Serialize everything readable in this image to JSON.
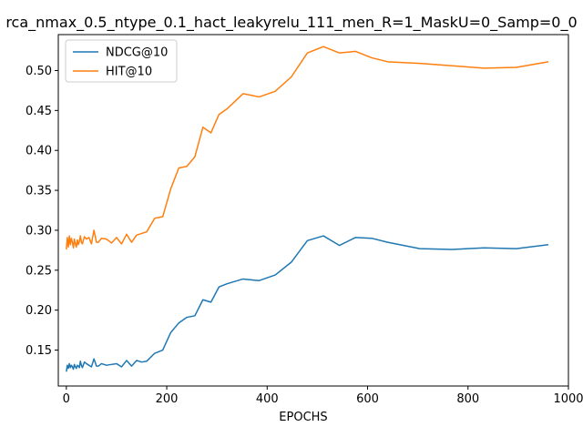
{
  "chart_data": {
    "type": "line",
    "title": "rca_nmax_0.5_ntype_0.1_hact_leakyrelu_111_men_R=1_MaskU=0_Samp=0_0",
    "xlabel": "EPOCHS",
    "ylabel": "",
    "xlim": [
      -16,
      1000
    ],
    "ylim": [
      0.105,
      0.545
    ],
    "xticks": [
      0,
      200,
      400,
      600,
      800,
      1000
    ],
    "yticks": [
      0.15,
      0.2,
      0.25,
      0.3,
      0.35,
      0.4,
      0.45,
      0.5
    ],
    "ytick_labels": [
      "0.15",
      "0.20",
      "0.25",
      "0.30",
      "0.35",
      "0.40",
      "0.45",
      "0.50"
    ],
    "grid": false,
    "legend_position": "top-left",
    "series": [
      {
        "name": "NDCG@10",
        "color": "#1f77b4",
        "x": [
          0,
          2,
          4,
          6,
          8,
          10,
          12,
          14,
          16,
          18,
          20,
          22,
          24,
          26,
          28,
          30,
          32,
          36,
          40,
          45,
          50,
          55,
          60,
          64,
          70,
          80,
          90,
          100,
          110,
          120,
          130,
          140,
          150,
          160,
          176,
          192,
          208,
          224,
          240,
          256,
          272,
          288,
          304,
          320,
          352,
          384,
          416,
          448,
          480,
          512,
          544,
          576,
          608,
          640,
          704,
          768,
          832,
          896,
          960
        ],
        "y": [
          0.123,
          0.131,
          0.127,
          0.133,
          0.128,
          0.131,
          0.129,
          0.126,
          0.132,
          0.129,
          0.127,
          0.131,
          0.13,
          0.128,
          0.136,
          0.131,
          0.128,
          0.135,
          0.133,
          0.131,
          0.129,
          0.139,
          0.13,
          0.13,
          0.133,
          0.131,
          0.132,
          0.133,
          0.129,
          0.137,
          0.13,
          0.137,
          0.135,
          0.136,
          0.146,
          0.15,
          0.172,
          0.184,
          0.191,
          0.193,
          0.213,
          0.21,
          0.229,
          0.233,
          0.239,
          0.237,
          0.244,
          0.26,
          0.287,
          0.293,
          0.281,
          0.291,
          0.29,
          0.285,
          0.277,
          0.276,
          0.278,
          0.277,
          0.282
        ]
      },
      {
        "name": "HIT@10",
        "color": "#ff7f0e",
        "x": [
          0,
          2,
          4,
          6,
          8,
          10,
          12,
          14,
          16,
          18,
          20,
          22,
          24,
          26,
          28,
          30,
          32,
          36,
          40,
          45,
          50,
          55,
          60,
          64,
          70,
          80,
          90,
          100,
          110,
          120,
          130,
          140,
          150,
          160,
          176,
          192,
          208,
          224,
          240,
          256,
          272,
          288,
          304,
          320,
          352,
          384,
          416,
          448,
          480,
          512,
          544,
          576,
          608,
          640,
          704,
          768,
          832,
          896,
          960
        ],
        "y": [
          0.276,
          0.291,
          0.279,
          0.293,
          0.282,
          0.29,
          0.285,
          0.278,
          0.289,
          0.283,
          0.279,
          0.288,
          0.282,
          0.286,
          0.293,
          0.285,
          0.283,
          0.292,
          0.289,
          0.291,
          0.283,
          0.3,
          0.285,
          0.285,
          0.29,
          0.289,
          0.284,
          0.291,
          0.283,
          0.295,
          0.285,
          0.294,
          0.296,
          0.298,
          0.315,
          0.317,
          0.352,
          0.378,
          0.38,
          0.392,
          0.429,
          0.422,
          0.445,
          0.452,
          0.471,
          0.467,
          0.474,
          0.492,
          0.522,
          0.53,
          0.522,
          0.524,
          0.516,
          0.511,
          0.509,
          0.506,
          0.503,
          0.504,
          0.511
        ]
      }
    ]
  }
}
